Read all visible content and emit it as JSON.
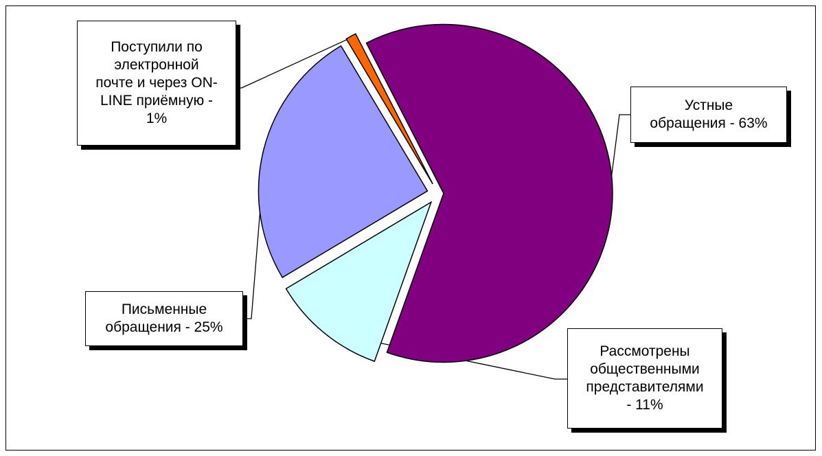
{
  "chart_data": {
    "type": "pie",
    "title": "",
    "exploded": true,
    "slices": [
      {
        "label": "Устные обращения - 63%",
        "value": 63,
        "color": "#800080"
      },
      {
        "label": "Рассмотрены общественными представителями - 11%",
        "value": 11,
        "color": "#CCFFFF"
      },
      {
        "label": "Письменные обращения - 25%",
        "value": 25,
        "color": "#9999FF"
      },
      {
        "label": "Поступили по электронной почте и через ON-LINE приёмную - 1%",
        "value": 1,
        "color": "#FF6600"
      }
    ]
  },
  "labels": {
    "oral": "Устные\nобращения - 63%",
    "public": "Рассмотрены\nобщественными\nпредставителями\n- 11%",
    "written": "Письменные\nобращения - 25%",
    "online": "Поступили по\nэлектронной\nпочте и через ON-\nLINE приёмную -\n1%"
  }
}
